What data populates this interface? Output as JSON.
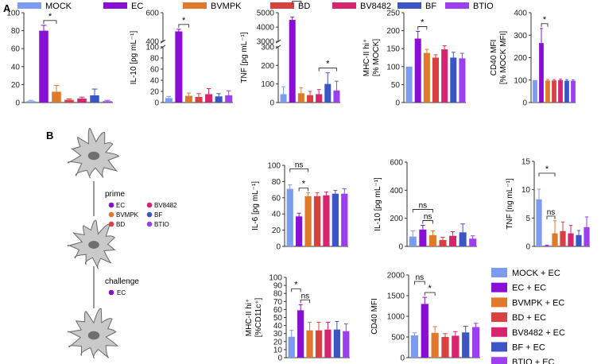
{
  "figure": {
    "panel_a_label": "A",
    "panel_b_label": "B",
    "prime_label": "prime",
    "challenge_label": "challenge",
    "challenge_item": "EC",
    "prime_items": [
      "EC",
      "BVMPK",
      "BD",
      "BV8482",
      "BF",
      "BTIO"
    ]
  },
  "colors": {
    "MOCK": "#7b9cf0",
    "EC": "#8a0fd4",
    "BVMPK": "#e07a2a",
    "BD": "#d94141",
    "BV8482": "#d6246e",
    "BF": "#3b56c4",
    "BTIO": "#9b3ff0",
    "axis": "#333333",
    "cell_fill": "#c9c9c9",
    "cell_stroke": "#6a6a6a",
    "nucleus": "#6f6f6f"
  },
  "legend_a": {
    "items": [
      {
        "label": "MOCK",
        "key": "MOCK"
      },
      {
        "label": "EC",
        "key": "EC"
      },
      {
        "label": "BVMPK",
        "key": "BVMPK"
      },
      {
        "label": "BD",
        "key": "BD"
      },
      {
        "label": "BV8482",
        "key": "BV8482"
      },
      {
        "label": "BF",
        "key": "BF"
      },
      {
        "label": "BTIO",
        "key": "BTIO"
      }
    ]
  },
  "legend_b": {
    "items": [
      {
        "label": "MOCK + EC",
        "key": "MOCK"
      },
      {
        "label": "EC + EC",
        "key": "EC"
      },
      {
        "label": "BVMPK + EC",
        "key": "BVMPK"
      },
      {
        "label": "BD + EC",
        "key": "BD"
      },
      {
        "label": "BV8482 + EC",
        "key": "BV8482"
      },
      {
        "label": "BF + EC",
        "key": "BF"
      },
      {
        "label": "BTIO + EC",
        "key": "BTIO"
      }
    ]
  },
  "chart_data": [
    {
      "id": "a-il6",
      "type": "bar",
      "panel": "A",
      "ylabel": "IL-6 [pg mL⁻¹]",
      "ylim": [
        0,
        100
      ],
      "yticks": [
        0,
        20,
        40,
        60,
        80,
        100
      ],
      "categories": [
        "MOCK",
        "EC",
        "BVMPK",
        "BD",
        "BV8482",
        "BF",
        "BTIO"
      ],
      "values": [
        1.5,
        80,
        12,
        3,
        4.5,
        8,
        1.5
      ],
      "errors": [
        1,
        6,
        7,
        1,
        1.5,
        7,
        1
      ],
      "significance": [
        {
          "from": 1,
          "to": 2,
          "label": "*"
        }
      ]
    },
    {
      "id": "a-il10",
      "type": "bar",
      "panel": "A",
      "ylabel": "IL-10 [pg mL⁻¹]",
      "ylim": [
        0,
        600
      ],
      "yticks": [
        0,
        20,
        40,
        60,
        80,
        100,
        400,
        600
      ],
      "axis_break": {
        "low": [
          0,
          100
        ],
        "high": [
          400,
          600
        ]
      },
      "categories": [
        "MOCK",
        "EC",
        "BVMPK",
        "BD",
        "BV8482",
        "BF",
        "BTIO"
      ],
      "values": [
        8,
        470,
        12,
        10,
        15,
        11,
        13
      ],
      "errors": [
        3,
        15,
        5,
        6,
        10,
        5,
        8
      ],
      "significance": [
        {
          "from": 1,
          "to": 2,
          "label": "*"
        }
      ]
    },
    {
      "id": "a-tnf",
      "type": "bar",
      "panel": "A",
      "ylabel": "TNF [pg mL⁻¹]",
      "ylim": [
        0,
        5000
      ],
      "yticks": [
        0,
        100,
        200,
        300,
        3000,
        4000,
        5000
      ],
      "axis_break": {
        "low": [
          0,
          300
        ],
        "high": [
          3000,
          5000
        ]
      },
      "categories": [
        "MOCK",
        "EC",
        "BVMPK",
        "BD",
        "BV8482",
        "BF",
        "BTIO"
      ],
      "values": [
        45,
        4500,
        50,
        40,
        45,
        100,
        65
      ],
      "errors": [
        40,
        200,
        30,
        20,
        25,
        60,
        50
      ],
      "significance": [
        {
          "from": 1,
          "to": 2,
          "label": ""
        },
        {
          "from": 4,
          "to": 6,
          "label": "*"
        }
      ]
    },
    {
      "id": "a-mhc",
      "type": "bar",
      "panel": "A",
      "ylabel": "MHC-II hi⁺",
      "ylabel2": "[% MOCK]",
      "ylim": [
        0,
        250
      ],
      "yticks": [
        0,
        50,
        100,
        150,
        200,
        250
      ],
      "categories": [
        "MOCK",
        "EC",
        "BVMPK",
        "BD",
        "BV8482",
        "BF",
        "BTIO"
      ],
      "values": [
        100,
        178,
        138,
        125,
        148,
        125,
        123
      ],
      "errors": [
        0,
        20,
        10,
        8,
        10,
        15,
        14
      ],
      "significance": [
        {
          "from": 1,
          "to": 2,
          "label": "*"
        }
      ]
    },
    {
      "id": "a-cd40",
      "type": "bar",
      "panel": "A",
      "ylabel": "CD40 MFI",
      "ylabel2": "[% MOCK MFI]",
      "ylim": [
        0,
        400
      ],
      "yticks": [
        0,
        100,
        200,
        300,
        400
      ],
      "categories": [
        "MOCK",
        "EC",
        "BVMPK",
        "BD",
        "BV8482",
        "BF",
        "BTIO"
      ],
      "values": [
        100,
        265,
        98,
        98,
        100,
        97,
        97
      ],
      "errors": [
        0,
        65,
        5,
        4,
        5,
        5,
        4
      ],
      "significance": [
        {
          "from": 1,
          "to": 2,
          "label": "*"
        }
      ]
    },
    {
      "id": "b-il6",
      "type": "bar",
      "panel": "B",
      "ylabel": "IL-6 [pg mL⁻¹]",
      "ylim": [
        0,
        100
      ],
      "yticks": [
        0,
        20,
        40,
        60,
        80,
        100
      ],
      "categories": [
        "MOCK + EC",
        "EC + EC",
        "BVMPK + EC",
        "BD + EC",
        "BV8482 + EC",
        "BF + EC",
        "BTIO + EC"
      ],
      "values": [
        71,
        37,
        62,
        62,
        63,
        65,
        65
      ],
      "errors": [
        5,
        4,
        4,
        4,
        4,
        4,
        6
      ],
      "significance": [
        {
          "from": 0,
          "to": 2,
          "label": "ns"
        },
        {
          "from": 1,
          "to": 2,
          "label": "*"
        }
      ]
    },
    {
      "id": "b-il10",
      "type": "bar",
      "panel": "B",
      "ylabel": "IL-10 [pg mL⁻¹]",
      "ylim": [
        0,
        600
      ],
      "yticks": [
        0,
        200,
        400,
        600
      ],
      "categories": [
        "MOCK + EC",
        "EC + EC",
        "BVMPK + EC",
        "BD + EC",
        "BV8482 + EC",
        "BF + EC",
        "BTIO + EC"
      ],
      "values": [
        70,
        120,
        80,
        45,
        75,
        100,
        55
      ],
      "errors": [
        40,
        30,
        30,
        20,
        30,
        60,
        20
      ],
      "significance": [
        {
          "from": 0,
          "to": 2,
          "label": "ns"
        },
        {
          "from": 1,
          "to": 2,
          "label": "ns"
        }
      ]
    },
    {
      "id": "b-tnf",
      "type": "bar",
      "panel": "B",
      "ylabel": "TNF [ng mL⁻¹]",
      "ylim": [
        0,
        15
      ],
      "yticks": [
        0,
        5,
        10,
        15
      ],
      "categories": [
        "MOCK + EC",
        "EC + EC",
        "BVMPK + EC",
        "BD + EC",
        "BV8482 + EC",
        "BF + EC",
        "BTIO + EC"
      ],
      "values": [
        8.3,
        0.1,
        2.3,
        2.7,
        2.3,
        2.0,
        3.4
      ],
      "errors": [
        1.8,
        0.1,
        2.2,
        1.6,
        1.4,
        0.8,
        1.8
      ],
      "significance": [
        {
          "from": 0,
          "to": 2,
          "label": "*"
        },
        {
          "from": 1,
          "to": 2,
          "label": "ns"
        }
      ]
    },
    {
      "id": "b-mhc",
      "type": "bar",
      "panel": "B",
      "ylabel": "MHC-II hi⁺",
      "ylabel2": "[%CD11c⁺]",
      "ylim": [
        0,
        100
      ],
      "yticks": [
        0,
        10,
        20,
        30,
        40,
        50,
        60,
        70,
        80,
        90,
        100
      ],
      "categories": [
        "MOCK + EC",
        "EC + EC",
        "BVMPK + EC",
        "BD + EC",
        "BV8482 + EC",
        "BF + EC",
        "BTIO + EC"
      ],
      "values": [
        26,
        59,
        34,
        34,
        35,
        35,
        33
      ],
      "errors": [
        8,
        7,
        10,
        10,
        9,
        10,
        9
      ],
      "significance": [
        {
          "from": 0,
          "to": 1,
          "label": "*"
        },
        {
          "from": 1,
          "to": 2,
          "label": "ns"
        }
      ]
    },
    {
      "id": "b-cd40",
      "type": "bar",
      "panel": "B",
      "ylabel": "CD40 MFI",
      "ylim": [
        0,
        2000
      ],
      "yticks": [
        0,
        500,
        1000,
        1500,
        2000
      ],
      "categories": [
        "MOCK + EC",
        "EC + EC",
        "BVMPK + EC",
        "BD + EC",
        "BV8482 + EC",
        "BF + EC",
        "BTIO + EC"
      ],
      "values": [
        540,
        1300,
        600,
        500,
        530,
        610,
        740
      ],
      "errors": [
        60,
        160,
        150,
        80,
        100,
        150,
        90
      ],
      "significance": [
        {
          "from": 0,
          "to": 1,
          "label": "ns"
        },
        {
          "from": 1,
          "to": 2,
          "label": "*"
        }
      ]
    }
  ]
}
